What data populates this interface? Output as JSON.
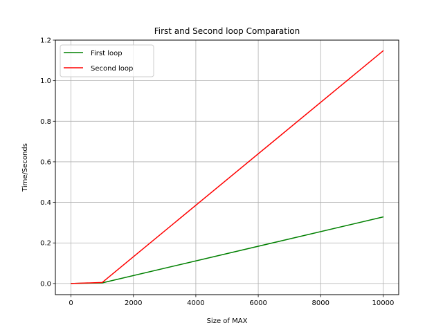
{
  "chart_data": {
    "type": "line",
    "title": "First and Second loop Comparation",
    "xlabel": "Size of MAX",
    "ylabel": "Time/Seconds",
    "xlim": [
      -500,
      10500
    ],
    "ylim": [
      -0.055,
      1.2
    ],
    "x_ticks": [
      0,
      2000,
      4000,
      6000,
      8000,
      10000
    ],
    "y_ticks": [
      0.0,
      0.2,
      0.4,
      0.6,
      0.8,
      1.0,
      1.2
    ],
    "x_tick_labels": [
      "0",
      "2000",
      "4000",
      "6000",
      "8000",
      "10000"
    ],
    "y_tick_labels": [
      "0.0",
      "0.2",
      "0.4",
      "0.6",
      "0.8",
      "1.0",
      "1.2"
    ],
    "grid": true,
    "legend_position": "top-left",
    "series": [
      {
        "name": "First loop",
        "color": "#008000",
        "x": [
          10,
          100,
          1000,
          10000
        ],
        "y": [
          0.0,
          0.0003,
          0.003,
          0.328
        ]
      },
      {
        "name": "Second loop",
        "color": "#ff0000",
        "x": [
          10,
          100,
          1000,
          10000
        ],
        "y": [
          0.0,
          0.0005,
          0.005,
          1.147
        ]
      }
    ]
  }
}
